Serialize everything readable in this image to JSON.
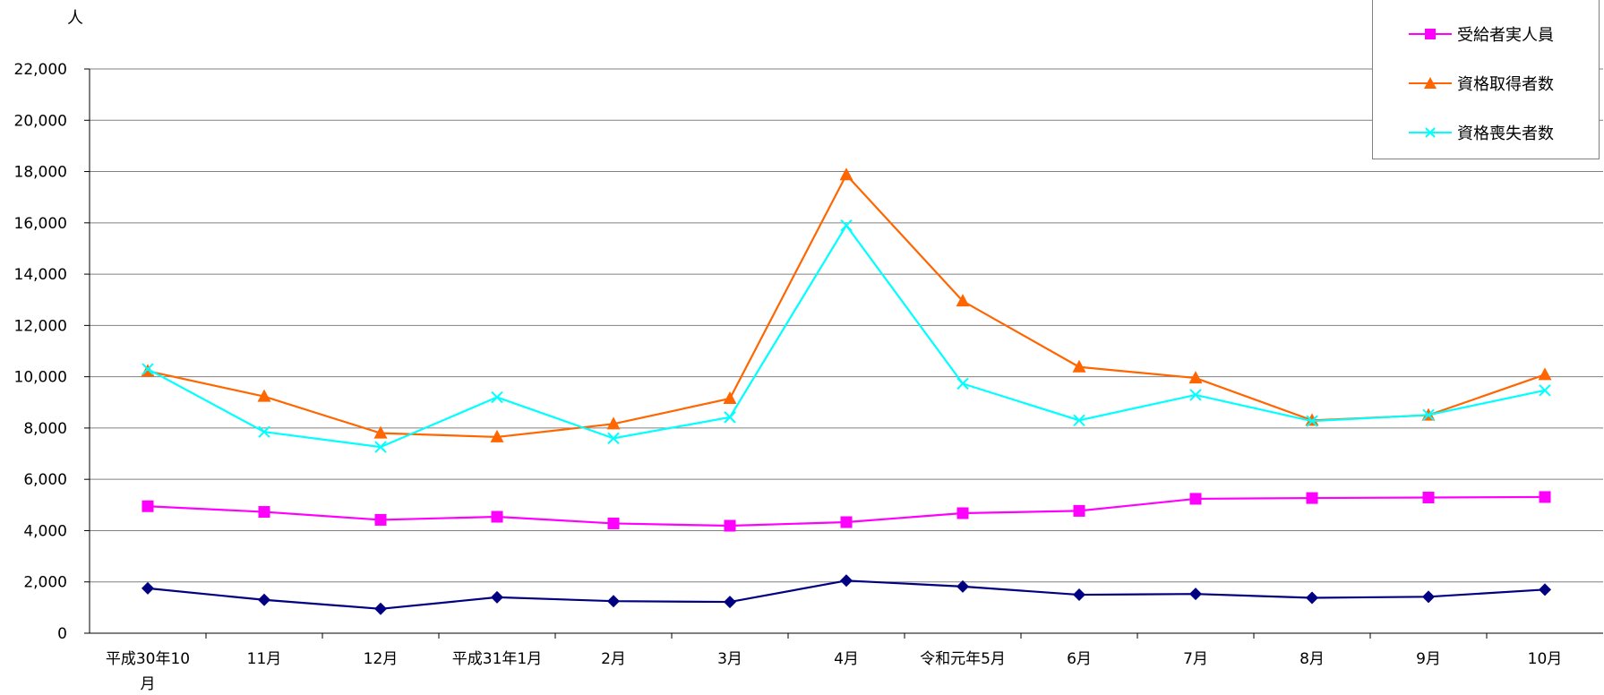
{
  "chart_data": {
    "type": "line",
    "unit_label": "人",
    "categories": [
      "平成30年10月",
      "11月",
      "12月",
      "平成31年1月",
      "2月",
      "3月",
      "4月",
      "令和元年5月",
      "6月",
      "7月",
      "8月",
      "9月",
      "10月"
    ],
    "ylim": [
      0,
      22000
    ],
    "yticks": [
      0,
      2000,
      4000,
      6000,
      8000,
      10000,
      12000,
      14000,
      16000,
      18000,
      20000,
      22000
    ],
    "ytick_labels": [
      "0",
      "2,000",
      "4,000",
      "6,000",
      "8,000",
      "10,000",
      "12,000",
      "14,000",
      "16,000",
      "18,000",
      "20,000",
      "22,000"
    ],
    "grid": true,
    "legend_position": "top-right",
    "series": [
      {
        "name": "",
        "color": "#000080",
        "marker": "diamond",
        "values": [
          1750,
          1300,
          950,
          1400,
          1250,
          1220,
          2050,
          1820,
          1500,
          1530,
          1380,
          1420,
          1700
        ]
      },
      {
        "name": "受給者実人員",
        "color": "#ff00ff",
        "marker": "square",
        "values": [
          4950,
          4730,
          4420,
          4540,
          4280,
          4190,
          4330,
          4680,
          4770,
          5240,
          5270,
          5290,
          5310
        ]
      },
      {
        "name": "資格取得者数",
        "color": "#ff6600",
        "marker": "triangle",
        "values": [
          10220,
          9230,
          7800,
          7650,
          8160,
          9150,
          17870,
          12950,
          10380,
          9950,
          8300,
          8500,
          10080
        ]
      },
      {
        "name": "資格喪失者数",
        "color": "#00ffff",
        "marker": "x",
        "values": [
          10300,
          7850,
          7260,
          9200,
          7600,
          8420,
          15900,
          9730,
          8300,
          9290,
          8270,
          8510,
          9470
        ]
      }
    ]
  }
}
